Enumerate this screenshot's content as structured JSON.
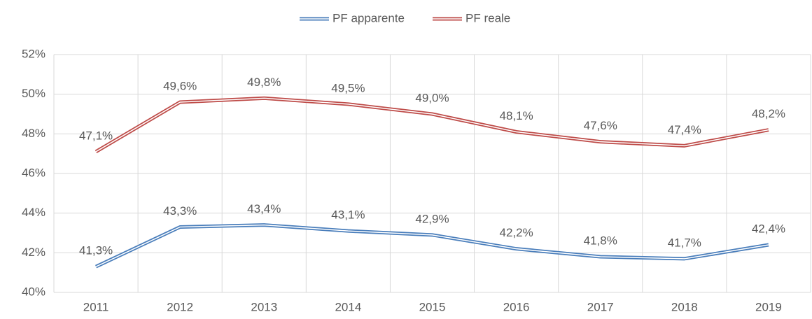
{
  "chart_data": {
    "type": "line",
    "categories": [
      "2011",
      "2012",
      "2013",
      "2014",
      "2015",
      "2016",
      "2017",
      "2018",
      "2019"
    ],
    "series": [
      {
        "name": "PF apparente",
        "color": "#4a7ebb",
        "values": [
          41.3,
          43.3,
          43.4,
          43.1,
          42.9,
          42.2,
          41.8,
          41.7,
          42.4
        ],
        "value_labels": [
          "41,3%",
          "43,3%",
          "43,4%",
          "43,1%",
          "42,9%",
          "42,2%",
          "41,8%",
          "41,7%",
          "42,4%"
        ]
      },
      {
        "name": "PF reale",
        "color": "#be4b48",
        "values": [
          47.1,
          49.6,
          49.8,
          49.5,
          49.0,
          48.1,
          47.6,
          47.4,
          48.2
        ],
        "value_labels": [
          "47,1%",
          "49,6%",
          "49,8%",
          "49,5%",
          "49,0%",
          "48,1%",
          "47,6%",
          "47,4%",
          "48,2%"
        ]
      }
    ],
    "ylim": [
      40,
      52
    ],
    "yticks": [
      {
        "value": 40,
        "label": "40%"
      },
      {
        "value": 42,
        "label": "42%"
      },
      {
        "value": 44,
        "label": "44%"
      },
      {
        "value": 46,
        "label": "46%"
      },
      {
        "value": 48,
        "label": "48%"
      },
      {
        "value": 50,
        "label": "50%"
      },
      {
        "value": 52,
        "label": "52%"
      }
    ],
    "grid": true,
    "legend": "top"
  }
}
